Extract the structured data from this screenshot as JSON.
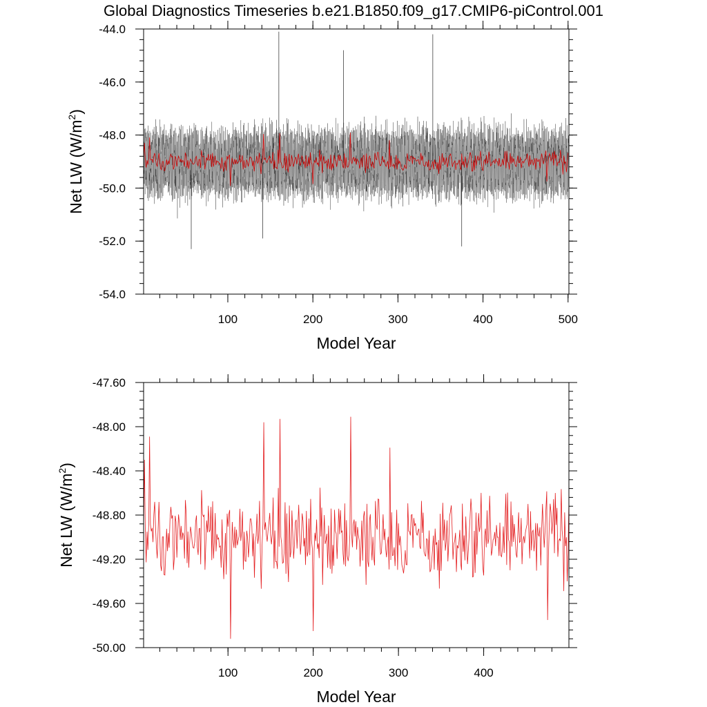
{
  "title": "Global Diagnostics Timeseries b.e21.B1850.f09_g17.CMIP6-piControl.001",
  "chart_data": [
    {
      "type": "line",
      "xlabel": "Model Year",
      "ylabel": "Net LW (W/m",
      "ylabel_sup": "2",
      "ylabel_close": ")",
      "xlim": [
        1,
        501
      ],
      "ylim": [
        -54.0,
        -44.0
      ],
      "x_ticks": [
        "100",
        "200",
        "300",
        "400",
        "500"
      ],
      "x_tick_values": [
        100,
        200,
        300,
        400,
        500
      ],
      "y_ticks": [
        "-44.0",
        "-46.0",
        "-48.0",
        "-50.0",
        "-52.0",
        "-54.0"
      ],
      "y_tick_values": [
        -44.0,
        -46.0,
        -48.0,
        -50.0,
        -52.0,
        -54.0
      ],
      "grid": false,
      "series": [
        {
          "kind": "monthly",
          "color": "#000000",
          "mean": -49.05,
          "range": [
            -52.3,
            -44.1
          ],
          "samples_per_year": 12,
          "peaks": [
            [
              160,
              -44.1
            ],
            [
              57,
              -52.3
            ],
            [
              375,
              -52.2
            ],
            [
              341,
              -44.2
            ],
            [
              236,
              -44.8
            ],
            [
              141,
              -51.9
            ]
          ]
        },
        {
          "kind": "annual",
          "color": "#cc0000",
          "mean": -49.0,
          "range": [
            -49.92,
            -47.91
          ]
        }
      ]
    },
    {
      "type": "line",
      "xlabel": "Model Year",
      "ylabel": "Net LW (W/m",
      "ylabel_sup": "2",
      "ylabel_close": ")",
      "xlim": [
        1,
        500
      ],
      "ylim": [
        -50.0,
        -47.6
      ],
      "x_ticks": [
        "100",
        "200",
        "300",
        "400"
      ],
      "x_tick_values": [
        100,
        200,
        300,
        400
      ],
      "y_ticks": [
        "-47.60",
        "-48.00",
        "-48.40",
        "-48.80",
        "-49.20",
        "-49.60",
        "-50.00"
      ],
      "y_tick_values": [
        -47.6,
        -48.0,
        -48.4,
        -48.8,
        -49.2,
        -49.6,
        -50.0
      ],
      "grid": false,
      "series": [
        {
          "kind": "annual",
          "color": "#e31a1c",
          "mean": -49.0,
          "range": [
            -49.92,
            -47.91
          ],
          "peaks": [
            [
              244,
              -47.91
            ],
            [
              161,
              -47.93
            ],
            [
              142,
              -47.96
            ],
            [
              8,
              -48.09
            ],
            [
              290,
              -48.19
            ],
            [
              103,
              -49.92
            ],
            [
              200,
              -49.85
            ],
            [
              475,
              -49.75
            ],
            [
              2,
              -48.3
            ],
            [
              498,
              -49.4
            ]
          ]
        }
      ]
    }
  ]
}
